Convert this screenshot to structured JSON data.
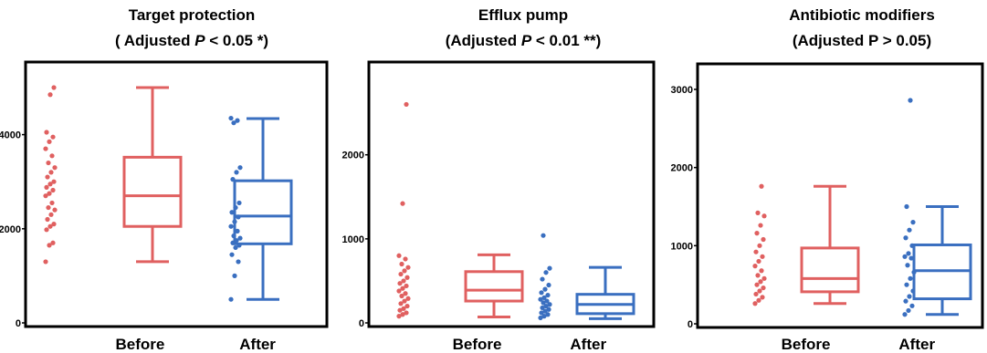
{
  "chart_data": [
    {
      "type": "box",
      "title_line1": "Target protection",
      "title_line2_prefix": "( Adjusted ",
      "title_line2_italic": "P",
      "title_line2_suffix": " < 0.05 *)",
      "xlabel": "",
      "ylabel": "",
      "ylim": [
        0,
        5000
      ],
      "yticks": [
        0,
        2000,
        4000
      ],
      "grid": false,
      "categories": [
        "Before",
        "After"
      ],
      "colors": [
        "#e06060",
        "#3a6fc0"
      ],
      "boxes": [
        {
          "name": "Before",
          "min": 1300,
          "q1": 2050,
          "median": 2700,
          "q3": 3520,
          "max": 5000
        },
        {
          "name": "After",
          "min": 500,
          "q1": 1680,
          "median": 2270,
          "q3": 3020,
          "max": 4340
        }
      ],
      "points": [
        [
          1300,
          1650,
          1700,
          1980,
          2050,
          2100,
          2200,
          2300,
          2400,
          2450,
          2550,
          2700,
          2750,
          2820,
          2880,
          2950,
          3000,
          3100,
          3200,
          3300,
          3400,
          3550,
          3700,
          3850,
          3950,
          4050,
          4850,
          5000
        ],
        [
          500,
          1000,
          1300,
          1450,
          1600,
          1650,
          1700,
          1750,
          1800,
          1850,
          1950,
          2050,
          2150,
          2250,
          2350,
          2450,
          2550,
          3050,
          3200,
          3300,
          4250,
          4300,
          4350
        ]
      ]
    },
    {
      "type": "box",
      "title_line1": "Efflux pump",
      "title_line2_prefix": "(Adjusted ",
      "title_line2_italic": "P",
      "title_line2_suffix": " < 0.01 **)",
      "xlabel": "",
      "ylabel": "",
      "ylim": [
        0,
        2800
      ],
      "yticks": [
        0,
        1000,
        2000
      ],
      "grid": false,
      "categories": [
        "Before",
        "After"
      ],
      "colors": [
        "#e06060",
        "#3a6fc0"
      ],
      "boxes": [
        {
          "name": "Before",
          "min": 70,
          "q1": 260,
          "median": 390,
          "q3": 610,
          "max": 810
        },
        {
          "name": "After",
          "min": 50,
          "q1": 110,
          "median": 220,
          "q3": 340,
          "max": 660
        }
      ],
      "points": [
        [
          80,
          100,
          120,
          150,
          170,
          200,
          230,
          260,
          290,
          320,
          350,
          380,
          410,
          440,
          470,
          500,
          540,
          580,
          620,
          660,
          700,
          760,
          800,
          1420,
          2600
        ],
        [
          60,
          80,
          100,
          120,
          140,
          160,
          180,
          200,
          220,
          240,
          260,
          280,
          300,
          330,
          360,
          400,
          450,
          520,
          600,
          650,
          1040
        ]
      ]
    },
    {
      "type": "box",
      "title_line1": "Antibiotic modifiers",
      "title_line2_prefix": "(Adjusted P > 0.05)",
      "title_line2_italic": "",
      "title_line2_suffix": "",
      "xlabel": "",
      "ylabel": "",
      "ylim": [
        0,
        3000
      ],
      "yticks": [
        0,
        1000,
        2000,
        3000
      ],
      "grid": false,
      "categories": [
        "Before",
        "After"
      ],
      "colors": [
        "#e06060",
        "#3a6fc0"
      ],
      "boxes": [
        {
          "name": "Before",
          "min": 260,
          "q1": 410,
          "median": 580,
          "q3": 970,
          "max": 1760
        },
        {
          "name": "After",
          "min": 120,
          "q1": 320,
          "median": 680,
          "q3": 1010,
          "max": 1500
        }
      ],
      "points": [
        [
          260,
          300,
          340,
          380,
          420,
          460,
          500,
          540,
          580,
          620,
          680,
          740,
          800,
          860,
          920,
          1000,
          1080,
          1160,
          1260,
          1380,
          1420,
          1760
        ],
        [
          120,
          170,
          230,
          290,
          350,
          420,
          500,
          580,
          660,
          750,
          840,
          860,
          900,
          1000,
          1100,
          1200,
          1300,
          1500,
          2860
        ]
      ]
    }
  ]
}
